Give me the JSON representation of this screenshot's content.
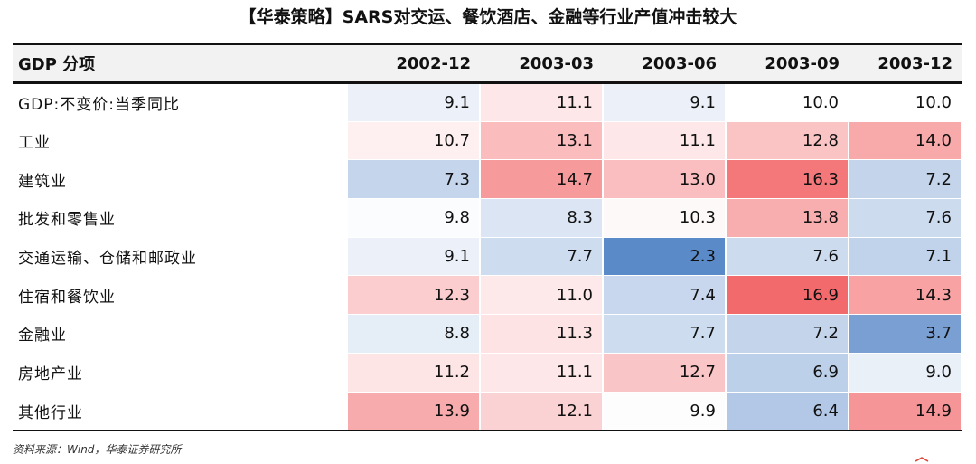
{
  "title": "【华泰策略】SARS对交运、餐饮酒店、金融等行业产值冲击较大",
  "source": "资料来源：Wind，华泰证券研究所",
  "colors": {
    "low": "#5b8ac9",
    "mid": "#ffffff",
    "high": "#f36a6d"
  },
  "chart_data": {
    "type": "heatmap",
    "row_header": "GDP 分项",
    "columns": [
      "2002-12",
      "2003-03",
      "2003-06",
      "2003-09",
      "2003-12"
    ],
    "rows": [
      "GDP:不变价:当季同比",
      "工业",
      "建筑业",
      "批发和零售业",
      "交通运输、仓储和邮政业",
      "住宿和餐饮业",
      "金融业",
      "房地产业",
      "其他行业"
    ],
    "values": [
      [
        9.1,
        11.1,
        9.1,
        10.0,
        10.0
      ],
      [
        10.7,
        13.1,
        11.1,
        12.8,
        14.0
      ],
      [
        7.3,
        14.7,
        13.0,
        16.3,
        7.2
      ],
      [
        9.8,
        8.3,
        10.3,
        13.8,
        7.6
      ],
      [
        9.1,
        7.7,
        2.3,
        7.6,
        7.1
      ],
      [
        12.3,
        11.0,
        7.4,
        16.9,
        14.3
      ],
      [
        8.8,
        11.3,
        7.7,
        7.2,
        3.7
      ],
      [
        11.2,
        11.1,
        12.7,
        6.9,
        9.0
      ],
      [
        13.9,
        12.1,
        9.9,
        6.4,
        14.9
      ]
    ]
  }
}
